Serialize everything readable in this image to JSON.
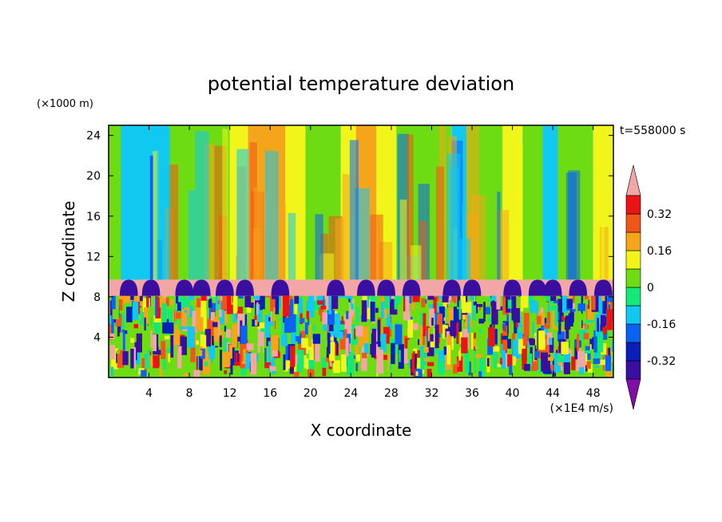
{
  "chart_data": {
    "type": "heatmap",
    "title": "potential temperature deviation",
    "xlabel": "X coordinate",
    "ylabel": "Z coordinate",
    "x_unit": "(×1E4 m/s)",
    "y_unit": "(×1000 m)",
    "time_label": "t=558000 s",
    "xlim": [
      0,
      50
    ],
    "ylim": [
      0,
      25
    ],
    "x_ticks": [
      4,
      8,
      12,
      16,
      20,
      24,
      28,
      32,
      36,
      40,
      44,
      48
    ],
    "y_ticks": [
      4,
      8,
      12,
      16,
      20,
      24
    ],
    "grid": false,
    "colorbar": {
      "levels": [
        -0.4,
        -0.32,
        -0.24,
        -0.16,
        -0.08,
        0,
        0.08,
        0.16,
        0.24,
        0.32,
        0.4
      ],
      "colors": [
        "#7f0fa8",
        "#3a0fa0",
        "#0a1fb5",
        "#0a62f0",
        "#10c8f0",
        "#14e878",
        "#6edc12",
        "#f2f51a",
        "#f5a51a",
        "#f0561a",
        "#ea1414",
        "#f2a6a6"
      ],
      "labels": [
        "-0.32",
        "-0.16",
        "0",
        "0.16",
        "0.32"
      ],
      "label_values": [
        -0.32,
        -0.16,
        0,
        0.16,
        0.32
      ],
      "extend": "both"
    },
    "layers": [
      {
        "z": [
          0,
          8.1
        ],
        "description_level": "turbulent mixed"
      },
      {
        "z": [
          8.1,
          9.7
        ],
        "level": 0.45
      },
      {
        "z": [
          9.7,
          25
        ],
        "description_level": "vertical columns"
      }
    ],
    "column_bands": [
      {
        "x": [
          0,
          3
        ],
        "value": 0.02
      },
      {
        "x": [
          1.2,
          6
        ],
        "value": -0.12
      },
      {
        "x": [
          6,
          12
        ],
        "value": 0.05
      },
      {
        "x": [
          12,
          13.8
        ],
        "value": 0.1
      },
      {
        "x": [
          13.8,
          17.5
        ],
        "value": 0.2
      },
      {
        "x": [
          17.5,
          19.5
        ],
        "value": 0.1
      },
      {
        "x": [
          19.5,
          23
        ],
        "value": 0.05
      },
      {
        "x": [
          23,
          24.5
        ],
        "value": 0.12
      },
      {
        "x": [
          24.5,
          26.5
        ],
        "value": 0.2
      },
      {
        "x": [
          26.5,
          28.5
        ],
        "value": 0.1
      },
      {
        "x": [
          28.5,
          34
        ],
        "value": 0.02
      },
      {
        "x": [
          34,
          35.5
        ],
        "value": -0.1
      },
      {
        "x": [
          35.5,
          39
        ],
        "value": 0.02
      },
      {
        "x": [
          39,
          41
        ],
        "value": 0.1
      },
      {
        "x": [
          41,
          43
        ],
        "value": 0.02
      },
      {
        "x": [
          43,
          44.5
        ],
        "value": -0.1
      },
      {
        "x": [
          44.5,
          48
        ],
        "value": 0.04
      },
      {
        "x": [
          48,
          50
        ],
        "value": 0.1
      }
    ],
    "cold_domes_x": [
      2,
      4.2,
      7.5,
      9.2,
      11.5,
      13.5,
      17,
      22.5,
      25.5,
      27.5,
      30,
      34,
      36,
      40,
      42.5,
      44,
      46.5,
      49
    ]
  }
}
